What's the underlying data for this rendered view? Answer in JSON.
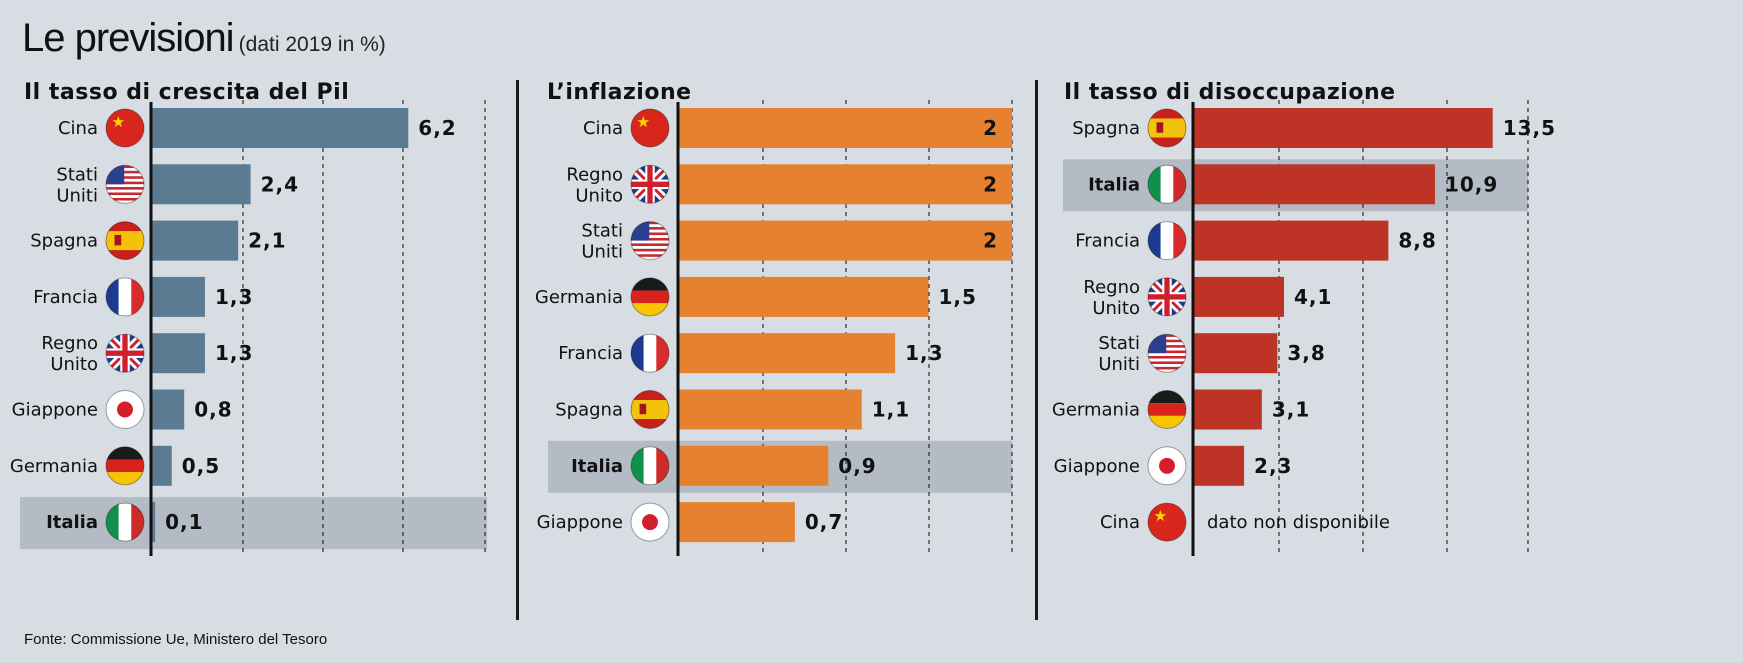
{
  "header": {
    "title": "Le previsioni",
    "subtitle": "(dati 2019 in %)"
  },
  "source": "Fonte: Commissione Ue, Ministero del Tesoro",
  "colors": {
    "gdp": "#5b7b92",
    "inflation": "#e6822f",
    "unemployment": "#bd3326",
    "highlight": "#b3bcc4",
    "background": "#d7dde3"
  },
  "icons": {
    "Cina": "flag-china-icon",
    "Stati Uniti": "flag-usa-icon",
    "Spagna": "flag-spain-icon",
    "Francia": "flag-france-icon",
    "Regno Unito": "flag-uk-icon",
    "Giappone": "flag-japan-icon",
    "Germania": "flag-germany-icon",
    "Italia": "flag-italy-icon"
  },
  "chart_data": [
    {
      "type": "bar",
      "orientation": "horizontal",
      "title": "Il tasso di crescita del Pil",
      "categories": [
        "Cina",
        "Stati Uniti",
        "Spagna",
        "Francia",
        "Regno Unito",
        "Giappone",
        "Germania",
        "Italia"
      ],
      "labels": [
        [
          "Cina"
        ],
        [
          "Stati",
          "Uniti"
        ],
        [
          "Spagna"
        ],
        [
          "Francia"
        ],
        [
          "Regno",
          "Unito"
        ],
        [
          "Giappone"
        ],
        [
          "Germania"
        ],
        [
          "Italia"
        ]
      ],
      "values": [
        6.2,
        2.4,
        2.1,
        1.3,
        1.3,
        0.8,
        0.5,
        0.1
      ],
      "value_labels": [
        "6,2",
        "2,4",
        "2,1",
        "1,3",
        "1,3",
        "0,8",
        "0,5",
        "0,1"
      ],
      "highlight": "Italia",
      "xlim": [
        0,
        13
      ]
    },
    {
      "type": "bar",
      "orientation": "horizontal",
      "title": "L’inflazione",
      "categories": [
        "Cina",
        "Regno Unito",
        "Stati Uniti",
        "Germania",
        "Francia",
        "Spagna",
        "Italia",
        "Giappone"
      ],
      "labels": [
        [
          "Cina"
        ],
        [
          "Regno",
          "Unito"
        ],
        [
          "Stati",
          "Uniti"
        ],
        [
          "Germania"
        ],
        [
          "Francia"
        ],
        [
          "Spagna"
        ],
        [
          "Italia"
        ],
        [
          "Giappone"
        ]
      ],
      "values": [
        2,
        2,
        2,
        1.5,
        1.3,
        1.1,
        0.9,
        0.7
      ],
      "value_labels": [
        "2",
        "2",
        "2",
        "1,5",
        "1,3",
        "1,1",
        "0,9",
        "0,7"
      ],
      "highlight": "Italia",
      "xlim": [
        0,
        2
      ]
    },
    {
      "type": "bar",
      "orientation": "horizontal",
      "title": "Il tasso di disoccupazione",
      "categories": [
        "Spagna",
        "Italia",
        "Francia",
        "Regno Unito",
        "Stati Uniti",
        "Germania",
        "Giappone",
        "Cina"
      ],
      "labels": [
        [
          "Spagna"
        ],
        [
          "Italia"
        ],
        [
          "Francia"
        ],
        [
          "Regno",
          "Unito"
        ],
        [
          "Stati",
          "Uniti"
        ],
        [
          "Germania"
        ],
        [
          "Giappone"
        ],
        [
          "Cina"
        ]
      ],
      "values": [
        13.5,
        10.9,
        8.8,
        4.1,
        3.8,
        3.1,
        2.3,
        null
      ],
      "value_labels": [
        "13,5",
        "10,9",
        "8,8",
        "4,1",
        "3,8",
        "3,1",
        "2,3",
        "dato non disponibile"
      ],
      "highlight": "Italia",
      "xlim": [
        0,
        15
      ]
    }
  ]
}
